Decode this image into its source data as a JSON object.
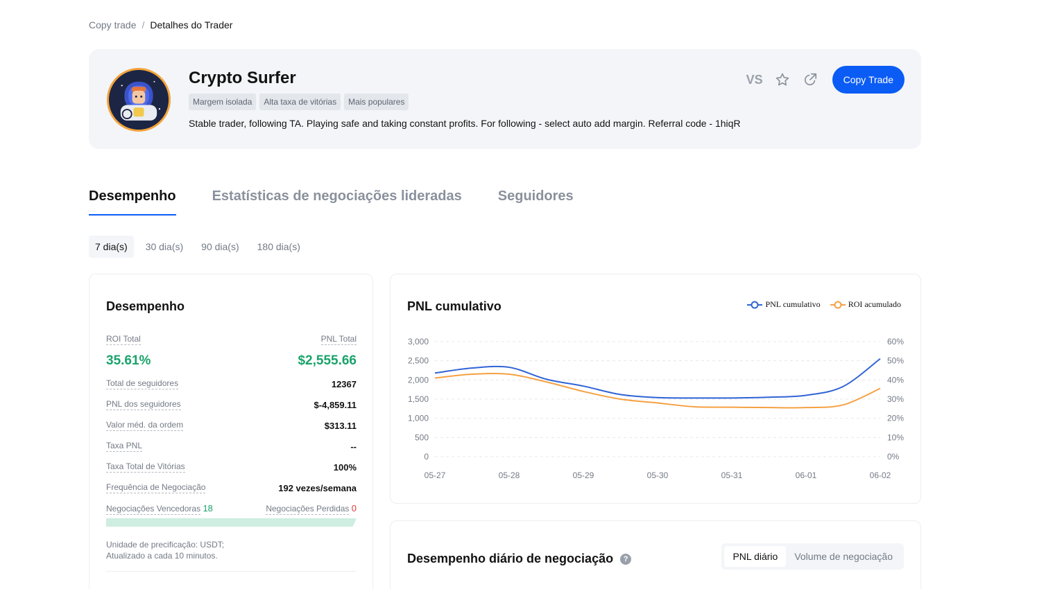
{
  "breadcrumb": {
    "parent": "Copy trade",
    "separator": "/",
    "current": "Detalhes do Trader"
  },
  "trader": {
    "name": "Crypto Surfer",
    "tags": [
      "Margem isolada",
      "Alta taxa de vitórias",
      "Mais populares"
    ],
    "bio": "Stable trader, following TA. Playing safe and taking constant profits. For following - select auto add margin. Referral code - 1hiqR"
  },
  "actions": {
    "vs_label": "VS",
    "copy_label": "Copy Trade",
    "icons": [
      "star-icon",
      "share-icon"
    ]
  },
  "tabs": [
    {
      "label": "Desempenho",
      "active": true
    },
    {
      "label": "Estatísticas de negociações lideradas",
      "active": false
    },
    {
      "label": "Seguidores",
      "active": false
    }
  ],
  "periods": [
    {
      "label": "7 dia(s)",
      "active": true
    },
    {
      "label": "30 dia(s)",
      "active": false
    },
    {
      "label": "90 dia(s)",
      "active": false
    },
    {
      "label": "180 dia(s)",
      "active": false
    }
  ],
  "performance": {
    "title": "Desempenho",
    "roi_label": "ROI Total",
    "roi_value": "35.61%",
    "pnl_label": "PNL Total",
    "pnl_value": "$2,555.66",
    "stats": [
      {
        "label": "Total de seguidores",
        "value": "12367"
      },
      {
        "label": "PNL dos seguidores",
        "value": "$-4,859.11"
      },
      {
        "label": "Valor méd. da ordem",
        "value": "$313.11"
      },
      {
        "label": "Taxa PNL",
        "value": "--"
      },
      {
        "label": "Taxa Total de Vitórias",
        "value": "100%"
      },
      {
        "label": "Frequência de Negociação",
        "value": "192 vezes/semana"
      }
    ],
    "wins_label": "Negociações Vencedoras",
    "wins_value": "18",
    "losses_label": "Negociações Perdidas",
    "losses_value": "0",
    "win_fraction": 1.0,
    "note_line1": "Unidade de precificação: USDT;",
    "note_line2": "Atualizado a cada 10 minutos."
  },
  "pnl_chart_card": {
    "title": "PNL cumulativo"
  },
  "chart_data": {
    "type": "line",
    "title": "PNL cumulativo",
    "x": [
      "05-27",
      "05-28",
      "05-29",
      "05-30",
      "05-31",
      "06-01",
      "06-02"
    ],
    "y_left_ticks": [
      "3,000",
      "2,500",
      "2,000",
      "1,500",
      "1,000",
      "500",
      "0"
    ],
    "y_right_ticks": [
      "60%",
      "50%",
      "40%",
      "30%",
      "20%",
      "10%",
      "0%"
    ],
    "ylim_left": [
      0,
      3000
    ],
    "ylim_right": [
      0,
      60
    ],
    "legend_position": "top-right",
    "grid": true,
    "series": [
      {
        "name": "PNL cumulativo",
        "axis": "left",
        "color": "#2f63d6",
        "points": [
          [
            0,
            2180
          ],
          [
            0.5,
            2310
          ],
          [
            1,
            2330
          ],
          [
            1.5,
            2020
          ],
          [
            2,
            1840
          ],
          [
            2.5,
            1620
          ],
          [
            3,
            1540
          ],
          [
            3.5,
            1530
          ],
          [
            4,
            1530
          ],
          [
            4.5,
            1550
          ],
          [
            5,
            1600
          ],
          [
            5.5,
            1830
          ],
          [
            6,
            2555
          ]
        ]
      },
      {
        "name": "ROI acumulado",
        "axis": "right",
        "color": "#f5a042",
        "points": [
          [
            0,
            41
          ],
          [
            0.5,
            43
          ],
          [
            1,
            43
          ],
          [
            1.5,
            39
          ],
          [
            2,
            34
          ],
          [
            2.5,
            30
          ],
          [
            3,
            28
          ],
          [
            3.5,
            26
          ],
          [
            4,
            25.8
          ],
          [
            4.5,
            25.6
          ],
          [
            5,
            25.6
          ],
          [
            5.5,
            27
          ],
          [
            6,
            35.6
          ]
        ]
      }
    ]
  },
  "daily": {
    "title": "Desempenho diário de negociação",
    "help": "?",
    "options": [
      {
        "label": "PNL diário",
        "active": true
      },
      {
        "label": "Volume de negociação",
        "active": false
      }
    ]
  }
}
